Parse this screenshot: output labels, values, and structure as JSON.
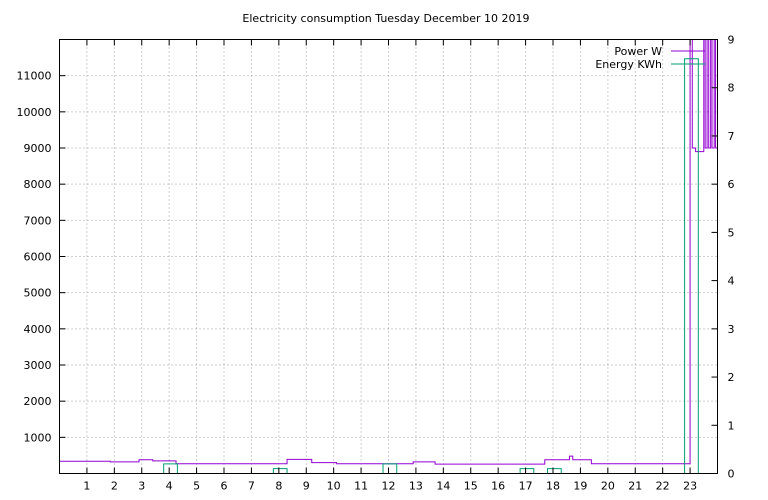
{
  "chart_data": {
    "type": "line",
    "title": "Electricity consumption Tuesday December 10 2019",
    "xlim": [
      0,
      24
    ],
    "x_ticks": [
      1,
      2,
      3,
      4,
      5,
      6,
      7,
      8,
      9,
      10,
      11,
      12,
      13,
      14,
      15,
      16,
      17,
      18,
      19,
      20,
      21,
      22,
      23
    ],
    "ylim": [
      0,
      12000
    ],
    "y_ticks": [
      1000,
      2000,
      3000,
      4000,
      5000,
      6000,
      7000,
      8000,
      9000,
      10000,
      11000
    ],
    "y2lim": [
      0,
      9
    ],
    "y2_ticks": [
      0,
      1,
      2,
      3,
      4,
      5,
      6,
      7,
      8,
      9
    ],
    "grid": true,
    "legend_position": "top-right",
    "series": [
      {
        "name": "Power W",
        "axis": "y",
        "color": "#9400d3",
        "style": "steps",
        "points": [
          [
            0,
            340
          ],
          [
            1.85,
            340
          ],
          [
            1.85,
            320
          ],
          [
            2.9,
            320
          ],
          [
            2.9,
            380
          ],
          [
            3.4,
            380
          ],
          [
            3.4,
            350
          ],
          [
            4.25,
            350
          ],
          [
            4.25,
            270
          ],
          [
            8.3,
            270
          ],
          [
            8.3,
            390
          ],
          [
            9.2,
            390
          ],
          [
            9.2,
            300
          ],
          [
            10.1,
            300
          ],
          [
            10.1,
            270
          ],
          [
            12.9,
            270
          ],
          [
            12.9,
            320
          ],
          [
            13.7,
            320
          ],
          [
            13.7,
            260
          ],
          [
            17.7,
            260
          ],
          [
            17.7,
            380
          ],
          [
            18.6,
            380
          ],
          [
            18.6,
            480
          ],
          [
            18.72,
            480
          ],
          [
            18.72,
            380
          ],
          [
            19.4,
            380
          ],
          [
            19.4,
            270
          ],
          [
            23.0,
            270
          ],
          [
            23.0,
            12000
          ],
          [
            23.08,
            12000
          ],
          [
            23.08,
            9000
          ],
          [
            23.2,
            9000
          ],
          [
            23.2,
            8900
          ],
          [
            23.5,
            8900
          ],
          [
            23.5,
            12000
          ],
          [
            23.55,
            12000
          ],
          [
            23.55,
            9000
          ],
          [
            23.62,
            9000
          ],
          [
            23.62,
            12000
          ],
          [
            23.68,
            12000
          ],
          [
            23.68,
            9000
          ],
          [
            23.75,
            9000
          ],
          [
            23.75,
            12000
          ],
          [
            23.8,
            12000
          ],
          [
            23.8,
            9000
          ],
          [
            23.88,
            9000
          ],
          [
            23.88,
            12000
          ],
          [
            23.93,
            12000
          ],
          [
            23.93,
            9000
          ],
          [
            24,
            9000
          ]
        ]
      },
      {
        "name": "Energy KWh",
        "axis": "y2",
        "color": "#009e73",
        "style": "steps",
        "points": [
          [
            3.8,
            0
          ],
          [
            3.8,
            0.2
          ],
          [
            4.3,
            0.2
          ],
          [
            4.3,
            0
          ],
          [
            7.8,
            0
          ],
          [
            7.8,
            0.1
          ],
          [
            8.3,
            0.1
          ],
          [
            8.3,
            0
          ],
          [
            11.8,
            0
          ],
          [
            11.8,
            0.2
          ],
          [
            12.3,
            0.2
          ],
          [
            12.3,
            0
          ],
          [
            16.8,
            0
          ],
          [
            16.8,
            0.1
          ],
          [
            17.3,
            0.1
          ],
          [
            17.3,
            0
          ],
          [
            17.8,
            0
          ],
          [
            17.8,
            0.1
          ],
          [
            18.3,
            0.1
          ],
          [
            18.3,
            0
          ],
          [
            22.8,
            0
          ],
          [
            22.8,
            8.6
          ],
          [
            23.3,
            8.6
          ],
          [
            23.3,
            0
          ]
        ]
      }
    ]
  }
}
